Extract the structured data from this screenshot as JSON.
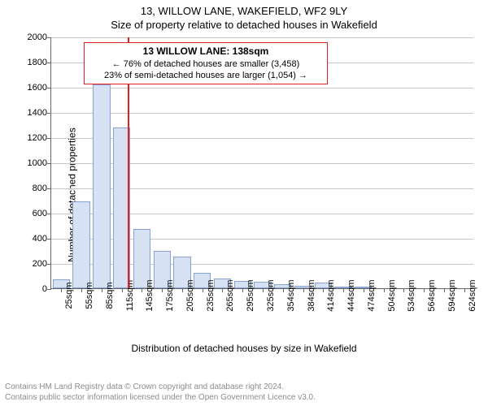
{
  "titles": {
    "line1": "13, WILLOW LANE, WAKEFIELD, WF2 9LY",
    "line2": "Size of property relative to detached houses in Wakefield"
  },
  "axes": {
    "ylabel": "Number of detached properties",
    "xlabel": "Distribution of detached houses by size in Wakefield"
  },
  "chart": {
    "type": "histogram",
    "background_color": "#ffffff",
    "grid_color": "#c7c7c7",
    "axis_color": "#666666",
    "bar_fill": "#d7e1f4",
    "bar_border": "#8aa2cf",
    "ylim": [
      0,
      2000
    ],
    "yticks": [
      0,
      200,
      400,
      600,
      800,
      1000,
      1200,
      1400,
      1600,
      1800,
      2000
    ],
    "xtick_labels": [
      "25sqm",
      "55sqm",
      "85sqm",
      "115sqm",
      "145sqm",
      "175sqm",
      "205sqm",
      "235sqm",
      "265sqm",
      "295sqm",
      "325sqm",
      "354sqm",
      "384sqm",
      "414sqm",
      "444sqm",
      "474sqm",
      "504sqm",
      "534sqm",
      "564sqm",
      "594sqm",
      "624sqm"
    ],
    "bars": [
      70,
      690,
      1620,
      1280,
      470,
      300,
      250,
      120,
      80,
      60,
      50,
      30,
      20,
      45,
      15,
      5,
      0,
      0,
      0,
      0,
      0
    ],
    "marker": {
      "x_index": 3.8,
      "color": "#e02020"
    },
    "annotation": {
      "title": "13 WILLOW LANE: 138sqm",
      "line1": "← 76% of detached houses are smaller (3,458)",
      "line2": "23% of semi-detached houses are larger (1,054) →",
      "border_color": "#e02020",
      "bg_color": "#ffffff"
    }
  },
  "footer": {
    "line1": "Contains HM Land Registry data © Crown copyright and database right 2024.",
    "line2": "Contains public sector information licensed under the Open Government Licence v3.0."
  }
}
